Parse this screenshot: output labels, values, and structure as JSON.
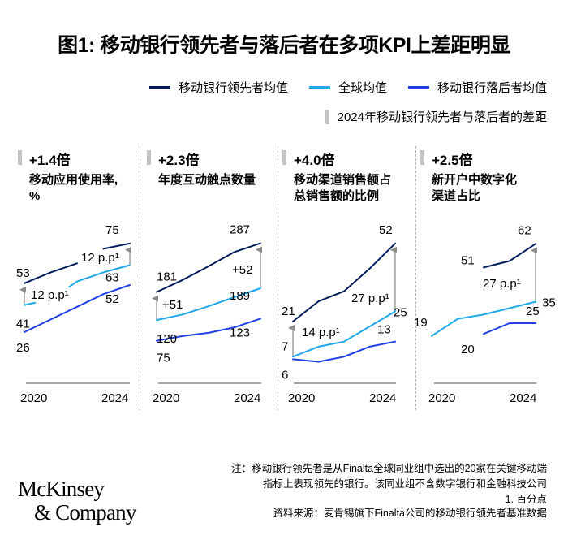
{
  "title": "图1: 移动银行领先者与落后者在多项KPI上差距明显",
  "legend": {
    "items": [
      {
        "label": "移动银行领先者均值",
        "color": "#051c5c"
      },
      {
        "label": "全球均值",
        "color": "#1fa7ea"
      },
      {
        "label": "移动银行落后者均值",
        "color": "#1f40e6"
      }
    ],
    "gap_label": "2024年移动银行领先者与落后者的差距",
    "gap_color": "#c4c4c4"
  },
  "chart_data": [
    {
      "type": "line",
      "multiplier": "+1.4倍",
      "title": "移动应用使用率，%",
      "title_lines": [
        "移动应用使用率,",
        "%"
      ],
      "x": [
        2020,
        2021,
        2022,
        2023,
        2024
      ],
      "xlabels": [
        "2020",
        "2024"
      ],
      "series": [
        {
          "name": "移动银行领先者均值",
          "values": [
            53,
            59,
            64,
            72,
            75
          ],
          "segments": [
            [
              0,
              1,
              2
            ],
            [
              3,
              4
            ]
          ]
        },
        {
          "name": "全球均值",
          "values": [
            41,
            44,
            54,
            59,
            63
          ],
          "segments": [
            [
              0,
              0.4
            ],
            [
              1.7,
              2,
              3,
              4
            ]
          ]
        },
        {
          "name": "移动银行落后者均值",
          "values": [
            26,
            33,
            40,
            47,
            52
          ],
          "segments": [
            [
              0,
              1,
              2,
              3,
              4
            ]
          ]
        }
      ],
      "labels": {
        "leader_start": "53",
        "leader_end": "75",
        "global_start": "41",
        "global_end": "63",
        "laggard_start": "26",
        "laggard_end": "52"
      },
      "gap_start": "12 p.p¹",
      "gap_end": "12 p.p¹"
    },
    {
      "type": "line",
      "multiplier": "+2.3倍",
      "title": "年度互动触点数量",
      "title_lines": [
        "年度互动触点数量"
      ],
      "x": [
        2020,
        2021,
        2022,
        2023,
        2024
      ],
      "xlabels": [
        "2020",
        "2024"
      ],
      "series": [
        {
          "name": "移动银行领先者均值",
          "values": [
            181,
            207,
            237,
            268,
            287
          ],
          "segments": [
            [
              0,
              1,
              2,
              3,
              4
            ]
          ]
        },
        {
          "name": "全球均值",
          "values": [
            120,
            132,
            150,
            170,
            189
          ],
          "segments": [
            [
              0,
              1,
              2,
              3,
              4
            ]
          ]
        },
        {
          "name": "移动银行落后者均值",
          "values": [
            75,
            85,
            92,
            104,
            123
          ],
          "segments": [
            [
              0,
              1,
              2,
              3,
              4
            ]
          ]
        }
      ],
      "labels": {
        "leader_start": "181",
        "leader_end": "287",
        "global_start": "120",
        "global_end": "189",
        "laggard_start": "75",
        "laggard_end": "123"
      },
      "gap_start": "+51",
      "gap_end": "+52"
    },
    {
      "type": "line",
      "multiplier": "+4.0倍",
      "title": "移动渠道销售额占总销售额的比例",
      "title_lines": [
        "移动渠道销售额占",
        "总销售额的比例"
      ],
      "x": [
        2020,
        2021,
        2022,
        2023,
        2024
      ],
      "xlabels": [
        "2020",
        "2024"
      ],
      "series": [
        {
          "name": "移动银行领先者均值",
          "values": [
            21,
            29,
            33,
            42,
            52
          ],
          "segments": [
            [
              0,
              1,
              2,
              3,
              4
            ]
          ]
        },
        {
          "name": "全球均值",
          "values": [
            7,
            11,
            13,
            19,
            25
          ],
          "segments": [
            [
              0,
              1,
              2,
              3,
              4
            ]
          ]
        },
        {
          "name": "移动银行落后者均值",
          "values": [
            6,
            5,
            7,
            11,
            13
          ],
          "segments": [
            [
              0,
              1,
              2,
              3,
              4
            ]
          ]
        }
      ],
      "labels": {
        "leader_start": "21",
        "leader_end": "52",
        "global_start": "7",
        "global_end": "25",
        "laggard_start": "6",
        "laggard_end": "13"
      },
      "gap_start": "14 p.p¹",
      "gap_end": "27 p.p¹"
    },
    {
      "type": "line",
      "multiplier": "+2.5倍",
      "title": "新开户中数字化渠道占比",
      "title_lines": [
        "新开户中数字化",
        "渠道占比"
      ],
      "x": [
        2020,
        2021,
        2022,
        2023,
        2024
      ],
      "xlabels": [
        "2020",
        "2024"
      ],
      "series": [
        {
          "name": "移动银行领先者均值",
          "values": [
            null,
            null,
            51,
            54,
            62
          ],
          "segments": [
            [
              2,
              3,
              4
            ]
          ]
        },
        {
          "name": "全球均值",
          "values": [
            19,
            27,
            29,
            32,
            35
          ],
          "segments": [
            [
              0,
              1,
              2,
              3,
              4
            ]
          ]
        },
        {
          "name": "移动银行落后者均值",
          "values": [
            null,
            null,
            20,
            25,
            25
          ],
          "segments": [
            [
              2,
              3,
              4
            ]
          ]
        }
      ],
      "labels": {
        "leader_start": "51",
        "leader_end": "62",
        "global_start": "19",
        "global_end": "35",
        "laggard_start": "20",
        "laggard_end": "25"
      },
      "gap_start": "",
      "gap_end": "27 p.p¹"
    }
  ],
  "footnotes": {
    "note_line1": "注：移动银行领先者是从Finalta全球同业组中选出的20家在关键移动端",
    "note_line2": "指标上表现领先的银行。该同业组不含数字银行和金融科技公司",
    "note_line3": "1.   百分点",
    "source": "资料来源：麦肯锡旗下Finalta公司的移动银行领先者基准数据"
  },
  "logo": {
    "line1": "McKinsey",
    "line2": "& Company"
  }
}
